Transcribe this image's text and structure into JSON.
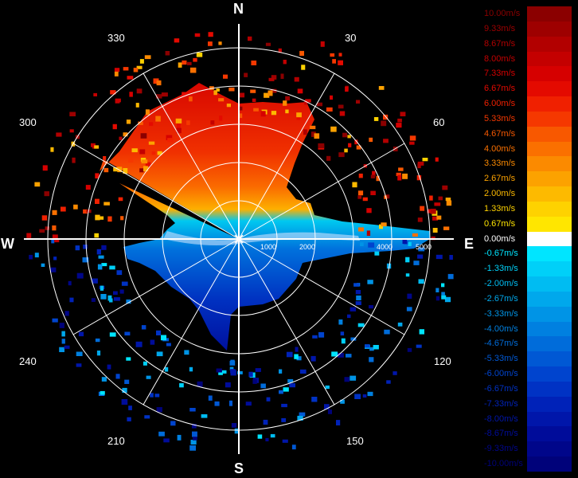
{
  "compass": {
    "north": "N",
    "south": "S",
    "east": "E",
    "west": "W"
  },
  "azimuth_labels": [
    "30",
    "60",
    "120",
    "150",
    "210",
    "240",
    "300",
    "330"
  ],
  "range_labels": [
    "1000",
    "2000",
    "4000",
    "5000"
  ],
  "colorbar": {
    "entries": [
      {
        "label": "10.00m/s",
        "color": "#8b0000"
      },
      {
        "label": "9.33m/s",
        "color": "#9e0000"
      },
      {
        "label": "8.67m/s",
        "color": "#b20000"
      },
      {
        "label": "8.00m/s",
        "color": "#c40000"
      },
      {
        "label": "7.33m/s",
        "color": "#d60000"
      },
      {
        "label": "6.67m/s",
        "color": "#e40a00"
      },
      {
        "label": "6.00m/s",
        "color": "#f02000"
      },
      {
        "label": "5.33m/s",
        "color": "#f53800"
      },
      {
        "label": "4.67m/s",
        "color": "#f85800"
      },
      {
        "label": "4.00m/s",
        "color": "#fa7000"
      },
      {
        "label": "3.33m/s",
        "color": "#fb8a00"
      },
      {
        "label": "2.67m/s",
        "color": "#fca200"
      },
      {
        "label": "2.00m/s",
        "color": "#fdba00"
      },
      {
        "label": "1.33m/s",
        "color": "#fed200"
      },
      {
        "label": "0.67m/s",
        "color": "#ffe600"
      },
      {
        "label": "0.00m/s",
        "color": "#ffffff"
      },
      {
        "label": "-0.67m/s",
        "color": "#00e5ff"
      },
      {
        "label": "-1.33m/s",
        "color": "#00d0f8"
      },
      {
        "label": "-2.00m/s",
        "color": "#00bcf2"
      },
      {
        "label": "-2.67m/s",
        "color": "#00a8ec"
      },
      {
        "label": "-3.33m/s",
        "color": "#0094e6"
      },
      {
        "label": "-4.00m/s",
        "color": "#0080e0"
      },
      {
        "label": "-4.67m/s",
        "color": "#006cda"
      },
      {
        "label": "-5.33m/s",
        "color": "#0058d4"
      },
      {
        "label": "-6.00m/s",
        "color": "#0044ce"
      },
      {
        "label": "-6.67m/s",
        "color": "#0032c4"
      },
      {
        "label": "-7.33m/s",
        "color": "#0022b8"
      },
      {
        "label": "-8.00m/s",
        "color": "#0016aa"
      },
      {
        "label": "-8.67m/s",
        "color": "#000c9a"
      },
      {
        "label": "-9.33m/s",
        "color": "#00068a"
      },
      {
        "label": "-10.00m/s",
        "color": "#00027a"
      }
    ]
  }
}
